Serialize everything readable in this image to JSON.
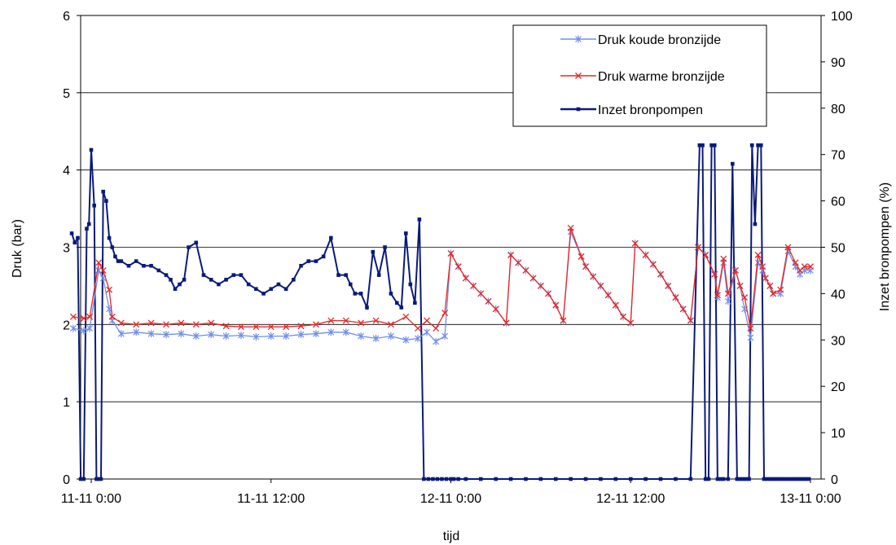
{
  "chart_data": {
    "type": "line",
    "xlabel": "tijd",
    "ylabel": "Druk (bar)",
    "y2label": "Inzet bronpompen (%)",
    "ylim": [
      0,
      6
    ],
    "y2lim": [
      0,
      100
    ],
    "yticks": [
      "0",
      "1",
      "2",
      "3",
      "4",
      "5",
      "6"
    ],
    "y2ticks": [
      "0",
      "10",
      "20",
      "30",
      "40",
      "50",
      "60",
      "70",
      "80",
      "90",
      "100"
    ],
    "xlim_hours": [
      0,
      48
    ],
    "xticks": [
      {
        "hour": 0,
        "label": "11-11 0:00"
      },
      {
        "hour": 12,
        "label": "11-11 12:00"
      },
      {
        "hour": 24,
        "label": "12-11 0:00"
      },
      {
        "hour": 36,
        "label": "12-11 12:00"
      },
      {
        "hour": 48,
        "label": "13-11 0:00"
      }
    ],
    "grid": "horizontal",
    "legend_position": "top-right",
    "series": [
      {
        "name": "Druk koude bronzijde",
        "color": "#6f8fe8",
        "marker": "asterisk",
        "axis": "left",
        "x": [
          -1.2,
          -0.5,
          -0.1,
          0.5,
          0.8,
          1.2,
          1.4,
          2,
          3,
          4,
          5,
          6,
          7,
          8,
          9,
          10,
          11,
          12,
          13,
          14,
          15,
          16,
          17,
          18,
          19,
          20,
          21,
          21.8,
          22.4,
          23,
          23.6,
          24,
          24.5,
          25,
          25.5,
          26,
          26.5,
          27,
          27.7,
          28,
          28.5,
          29,
          29.5,
          30,
          30.5,
          31,
          31.5,
          32,
          32.7,
          33,
          33.5,
          34,
          34.5,
          35,
          35.5,
          36,
          36.3,
          37,
          37.5,
          38,
          38.5,
          39,
          39.5,
          40,
          40.5,
          41,
          41.6,
          41.8,
          42.2,
          42.5,
          43,
          43.3,
          43.6,
          44,
          44.5,
          44.8,
          45,
          45.3,
          45.5,
          46,
          46.5,
          47,
          47.3,
          47.6,
          48
        ],
        "y": [
          1.95,
          1.92,
          1.95,
          2.7,
          2.6,
          2.2,
          2.05,
          1.88,
          1.9,
          1.88,
          1.87,
          1.88,
          1.85,
          1.87,
          1.85,
          1.86,
          1.84,
          1.85,
          1.85,
          1.87,
          1.88,
          1.9,
          1.9,
          1.85,
          1.82,
          1.85,
          1.8,
          1.82,
          1.9,
          1.78,
          1.85,
          2.92,
          2.75,
          2.6,
          2.5,
          2.4,
          2.3,
          2.2,
          2.02,
          2.9,
          2.8,
          2.7,
          2.6,
          2.5,
          2.4,
          2.25,
          2.05,
          3.2,
          2.88,
          2.75,
          2.62,
          2.5,
          2.38,
          2.25,
          2.1,
          2.02,
          3.05,
          2.9,
          2.78,
          2.65,
          2.5,
          2.35,
          2.2,
          2.05,
          3.0,
          2.9,
          2.65,
          2.35,
          2.8,
          2.3,
          2.7,
          2.5,
          2.2,
          1.83,
          2.8,
          2.7,
          2.6,
          2.5,
          2.4,
          2.4,
          2.95,
          2.75,
          2.65,
          2.7,
          2.7
        ]
      },
      {
        "name": "Druk warme bronzijde",
        "color": "#e82626",
        "marker": "cross",
        "axis": "left",
        "x": [
          -1.2,
          -0.5,
          -0.1,
          0.5,
          0.8,
          1.2,
          1.4,
          2,
          3,
          4,
          5,
          6,
          7,
          8,
          9,
          10,
          11,
          12,
          13,
          14,
          15,
          16,
          17,
          18,
          19,
          20,
          21,
          21.8,
          22.4,
          23,
          23.6,
          24,
          24.5,
          25,
          25.5,
          26,
          26.5,
          27,
          27.7,
          28,
          28.5,
          29,
          29.5,
          30,
          30.5,
          31,
          31.5,
          32,
          32.7,
          33,
          33.5,
          34,
          34.5,
          35,
          35.5,
          36,
          36.3,
          37,
          37.5,
          38,
          38.5,
          39,
          39.5,
          40,
          40.5,
          41,
          41.6,
          41.8,
          42.2,
          42.5,
          43,
          43.3,
          43.6,
          44,
          44.5,
          44.8,
          45,
          45.3,
          45.5,
          46,
          46.5,
          47,
          47.3,
          47.6,
          48
        ],
        "y": [
          2.1,
          2.08,
          2.1,
          2.8,
          2.7,
          2.45,
          2.1,
          2.02,
          2.0,
          2.02,
          2.0,
          2.02,
          2.0,
          2.02,
          1.98,
          1.97,
          1.97,
          1.97,
          1.97,
          1.98,
          2.0,
          2.05,
          2.05,
          2.02,
          2.05,
          2.0,
          2.1,
          1.95,
          2.05,
          1.95,
          2.15,
          2.92,
          2.75,
          2.6,
          2.5,
          2.4,
          2.3,
          2.2,
          2.02,
          2.9,
          2.8,
          2.7,
          2.6,
          2.5,
          2.4,
          2.25,
          2.05,
          3.25,
          2.88,
          2.75,
          2.62,
          2.5,
          2.38,
          2.25,
          2.1,
          2.02,
          3.05,
          2.9,
          2.78,
          2.65,
          2.5,
          2.35,
          2.2,
          2.05,
          3.0,
          2.9,
          2.65,
          2.38,
          2.85,
          2.4,
          2.7,
          2.5,
          2.35,
          1.95,
          2.9,
          2.75,
          2.6,
          2.5,
          2.4,
          2.45,
          3.0,
          2.8,
          2.7,
          2.75,
          2.75
        ]
      },
      {
        "name": "Inzet bronpompen",
        "color": "#0a1a7a",
        "marker": "square",
        "axis": "right",
        "x": [
          -1.3,
          -1.1,
          -0.9,
          -0.7,
          -0.5,
          -0.3,
          -0.15,
          0,
          0.2,
          0.35,
          0.5,
          0.65,
          0.8,
          1.0,
          1.2,
          1.4,
          1.6,
          1.8,
          2.0,
          2.5,
          3,
          3.5,
          4,
          4.5,
          5,
          5.3,
          5.6,
          5.9,
          6.2,
          6.5,
          7,
          7.5,
          8,
          8.5,
          9,
          9.5,
          10,
          10.5,
          11,
          11.5,
          12,
          12.5,
          13,
          13.5,
          14,
          14.5,
          15,
          15.5,
          16,
          16.5,
          17,
          17.3,
          17.6,
          18,
          18.4,
          18.8,
          19.2,
          19.6,
          20,
          20.4,
          20.7,
          21,
          21.3,
          21.6,
          21.9,
          22.2,
          22.5,
          22.8,
          23.1,
          23.4,
          23.7,
          24.0,
          24.2,
          24.5,
          25,
          26,
          27,
          28,
          29,
          30,
          31,
          32,
          33,
          34,
          35,
          36,
          37,
          38,
          39,
          40,
          40.6,
          40.8,
          41.0,
          41.2,
          41.4,
          41.6,
          41.8,
          42.0,
          42.2,
          42.5,
          42.8,
          43.1,
          43.3,
          43.5,
          43.7,
          43.9,
          44.1,
          44.3,
          44.5,
          44.7,
          44.9,
          45.1,
          45.3,
          45.5,
          45.7,
          45.9,
          46.1,
          46.3,
          46.5,
          46.7,
          46.9,
          47.1,
          47.3,
          47.5,
          47.7,
          47.9
        ],
        "y": [
          53,
          51,
          52,
          0,
          0,
          54,
          55,
          71,
          59,
          0,
          0,
          0,
          62,
          60,
          52,
          50,
          48,
          47,
          47,
          46,
          47,
          46,
          46,
          45,
          44,
          43,
          41,
          42,
          43,
          50,
          51,
          44,
          43,
          42,
          43,
          44,
          44,
          42,
          41,
          40,
          41,
          42,
          41,
          43,
          46,
          47,
          47,
          48,
          52,
          44,
          44,
          42,
          40,
          40,
          37,
          49,
          44,
          50,
          40,
          38,
          37,
          53,
          42,
          38,
          56,
          0,
          0,
          0,
          0,
          0,
          0,
          0,
          0,
          0,
          0,
          0,
          0,
          0,
          0,
          0,
          0,
          0,
          0,
          0,
          0,
          0,
          0,
          0,
          0,
          0,
          72,
          72,
          0,
          0,
          72,
          72,
          0,
          0,
          0,
          0,
          68,
          0,
          0,
          0,
          0,
          0,
          72,
          55,
          72,
          72,
          0,
          0,
          0,
          0,
          0,
          0,
          0,
          0,
          0,
          0,
          0,
          0,
          0,
          0,
          0,
          0
        ]
      }
    ]
  }
}
